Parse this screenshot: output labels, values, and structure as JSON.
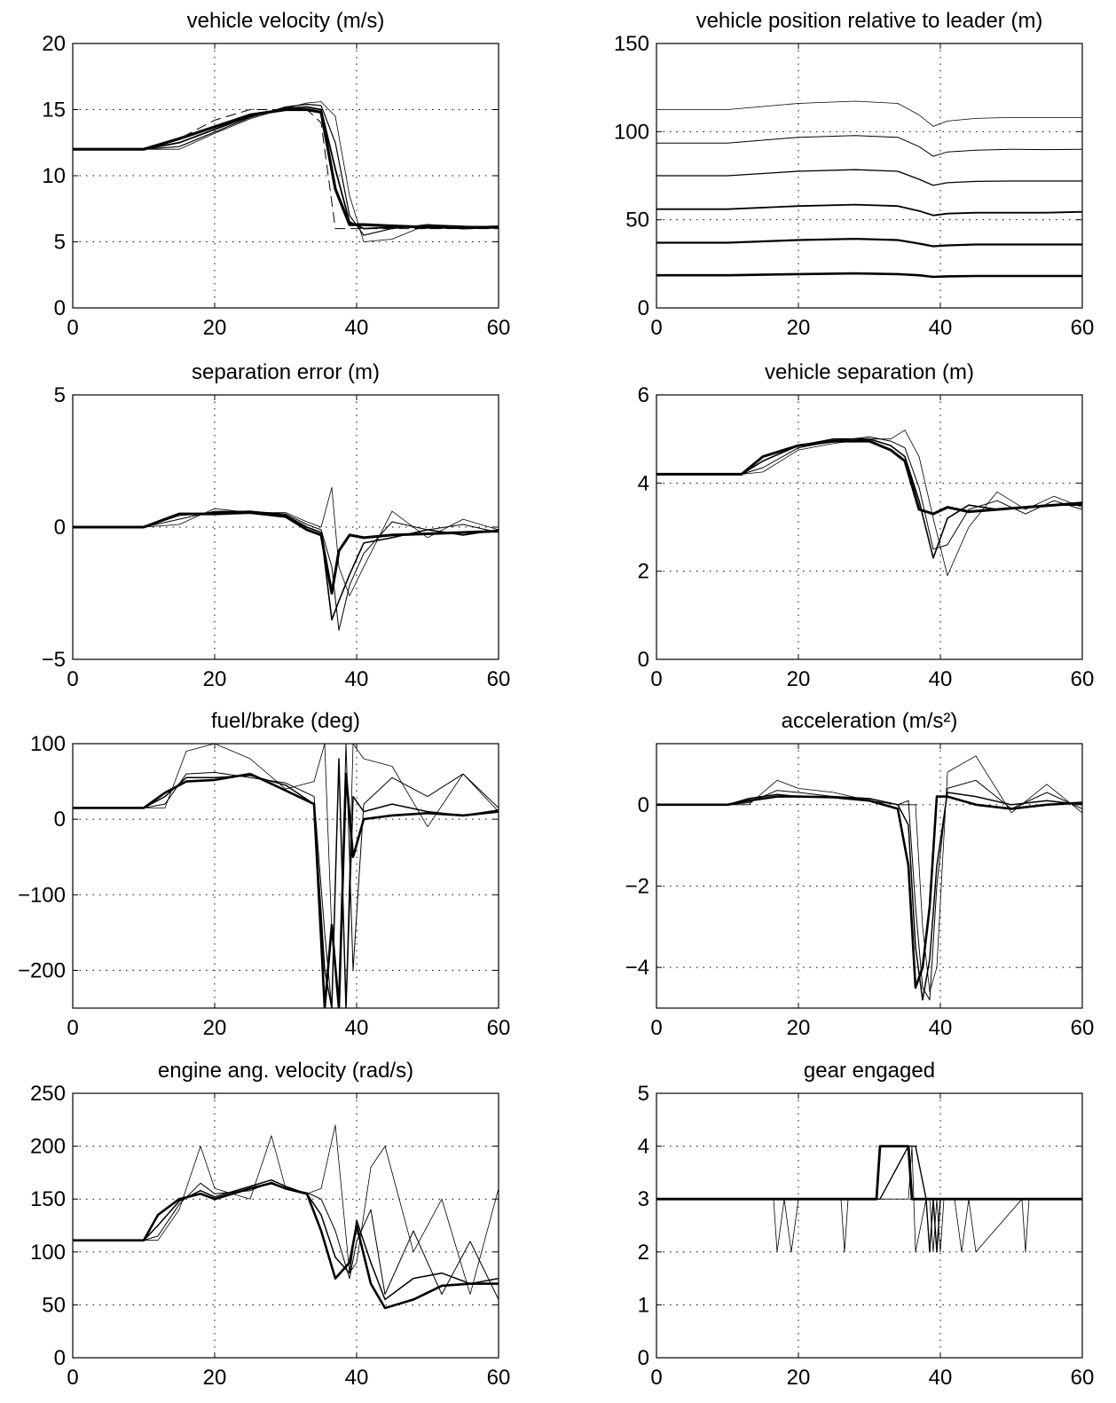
{
  "figure": {
    "background": "#ffffff",
    "line_color": "#000000",
    "grid_style": "dotted",
    "grid": true
  },
  "chart_data": [
    {
      "id": "velocity",
      "type": "line",
      "title": "vehicle velocity (m/s)",
      "xlim": [
        0,
        60
      ],
      "ylim": [
        0,
        20
      ],
      "xticks": [
        0,
        20,
        40,
        60
      ],
      "yticks": [
        0,
        5,
        10,
        15,
        20
      ],
      "ytick_labels": [
        "0",
        "5",
        "10",
        "15",
        "20"
      ],
      "x": [
        0,
        10,
        15,
        20,
        25,
        30,
        33,
        35,
        37,
        39,
        41,
        45,
        50,
        55,
        60
      ],
      "series": [
        {
          "values": [
            12,
            12,
            12.8,
            13.7,
            14.6,
            15.0,
            15.0,
            14.8,
            9.0,
            6.3,
            6.3,
            6.2,
            6.1,
            6.1,
            6.1
          ],
          "width": 3.2
        },
        {
          "values": [
            12,
            12,
            12.5,
            13.5,
            14.5,
            15.1,
            15.2,
            15.0,
            10.5,
            6.5,
            6.0,
            6.1,
            6.2,
            6.0,
            6.1
          ],
          "width": 1.8
        },
        {
          "values": [
            12,
            12,
            12.2,
            13.3,
            14.4,
            15.2,
            15.4,
            15.3,
            12.5,
            7.0,
            5.5,
            6.0,
            6.3,
            6.1,
            6.2
          ],
          "width": 1.2
        },
        {
          "values": [
            12,
            12,
            12.0,
            13.2,
            14.3,
            15.1,
            15.5,
            15.6,
            14.5,
            8.5,
            5.0,
            5.2,
            6.3,
            6.2,
            6.1
          ],
          "width": 0.8
        },
        {
          "values": [
            12,
            12,
            12.8,
            14.2,
            15.0,
            15.0,
            15.0,
            14.0,
            6.0,
            6.0,
            6.0,
            6.0,
            6.0,
            6.0,
            6.0
          ],
          "width": 1.0,
          "dash": "12,6"
        }
      ]
    },
    {
      "id": "position",
      "type": "line",
      "title": "vehicle position relative to leader (m)",
      "xlim": [
        0,
        60
      ],
      "ylim": [
        0,
        150
      ],
      "xticks": [
        0,
        20,
        40,
        60
      ],
      "yticks": [
        0,
        50,
        100,
        150
      ],
      "ytick_labels": [
        "0",
        "50",
        "100",
        "150"
      ],
      "x": [
        0,
        10,
        20,
        28,
        34,
        37,
        39,
        41,
        45,
        50,
        55,
        60
      ],
      "series": [
        {
          "values": [
            18.5,
            18.5,
            19.2,
            19.6,
            19.2,
            18.5,
            17.6,
            17.9,
            18.1,
            18.1,
            18.1,
            18.1
          ],
          "width": 2.6
        },
        {
          "values": [
            37,
            37,
            38.5,
            39.2,
            38.5,
            36.5,
            35,
            35.5,
            36,
            36,
            36,
            36
          ],
          "width": 2.2
        },
        {
          "values": [
            56,
            56,
            57.8,
            58.6,
            57.8,
            55,
            52.5,
            53.5,
            54,
            54,
            54,
            54.5
          ],
          "width": 1.8
        },
        {
          "values": [
            75,
            75,
            77.5,
            78.4,
            77.5,
            73,
            69.5,
            71,
            71.8,
            72,
            72,
            72
          ],
          "width": 1.3
        },
        {
          "values": [
            93.5,
            93.5,
            96.8,
            97.8,
            96.8,
            91.5,
            86,
            88.5,
            89.5,
            90,
            89.8,
            90
          ],
          "width": 1.0
        },
        {
          "values": [
            112.5,
            112.5,
            116,
            117.3,
            116,
            109.5,
            103,
            106,
            107.5,
            108,
            108,
            108
          ],
          "width": 0.8
        }
      ]
    },
    {
      "id": "sep_error",
      "type": "line",
      "title": "separation error (m)",
      "xlim": [
        0,
        60
      ],
      "ylim": [
        -5,
        5
      ],
      "xticks": [
        0,
        20,
        40,
        60
      ],
      "yticks": [
        -5,
        0,
        5
      ],
      "ytick_labels": [
        "−5",
        "0",
        "5"
      ],
      "x": [
        0,
        10,
        15,
        20,
        25,
        30,
        33,
        35,
        36.5,
        37.5,
        39,
        41,
        45,
        50,
        55,
        60
      ],
      "series": [
        {
          "values": [
            0,
            0,
            0.5,
            0.5,
            0.55,
            0.4,
            -0.1,
            -0.3,
            -2.5,
            -0.9,
            -0.3,
            -0.4,
            -0.3,
            -0.25,
            -0.2,
            -0.15
          ],
          "width": 3.0
        },
        {
          "values": [
            0,
            0,
            0.45,
            0.55,
            0.6,
            0.45,
            0.0,
            -0.2,
            -3.5,
            -2.8,
            -1.8,
            -0.6,
            -0.4,
            -0.1,
            -0.3,
            -0.1
          ],
          "width": 1.6
        },
        {
          "values": [
            0,
            0,
            0.3,
            0.6,
            0.6,
            0.5,
            0.1,
            -0.1,
            -1.5,
            -3.9,
            -2.2,
            -1.0,
            0.2,
            -0.1,
            0.1,
            -0.2
          ],
          "width": 1.0
        },
        {
          "values": [
            0,
            0,
            0.1,
            0.7,
            0.55,
            0.55,
            0.2,
            0.0,
            1.5,
            -1.5,
            -2.6,
            -1.5,
            0.6,
            -0.4,
            0.3,
            -0.1
          ],
          "width": 0.8
        }
      ]
    },
    {
      "id": "separation",
      "type": "line",
      "title": "vehicle separation (m)",
      "xlim": [
        0,
        60
      ],
      "ylim": [
        0,
        6
      ],
      "xticks": [
        0,
        20,
        40,
        60
      ],
      "yticks": [
        0,
        2,
        4,
        6
      ],
      "ytick_labels": [
        "0",
        "2",
        "4",
        "6"
      ],
      "x": [
        0,
        10,
        12,
        15,
        20,
        25,
        30,
        33,
        35,
        37,
        39,
        41,
        44,
        48,
        52,
        56,
        60
      ],
      "series": [
        {
          "values": [
            4.2,
            4.2,
            4.2,
            4.6,
            4.85,
            4.95,
            4.95,
            4.75,
            4.5,
            3.4,
            3.3,
            3.45,
            3.35,
            3.4,
            3.45,
            3.5,
            3.55
          ],
          "width": 3.0
        },
        {
          "values": [
            4.2,
            4.2,
            4.2,
            4.5,
            4.85,
            5.0,
            5.0,
            4.85,
            4.6,
            3.6,
            2.3,
            3.2,
            3.5,
            3.4,
            3.45,
            3.5,
            3.5
          ],
          "width": 1.6
        },
        {
          "values": [
            4.2,
            4.2,
            4.2,
            4.35,
            4.8,
            4.95,
            5.05,
            4.95,
            4.8,
            3.9,
            2.5,
            2.6,
            3.4,
            3.6,
            3.3,
            3.6,
            3.4
          ],
          "width": 1.0
        },
        {
          "values": [
            4.2,
            4.2,
            4.2,
            4.25,
            4.75,
            4.9,
            5.0,
            5.0,
            5.2,
            4.6,
            3.2,
            1.9,
            3.0,
            3.8,
            3.4,
            3.7,
            3.45
          ],
          "width": 0.8
        }
      ]
    },
    {
      "id": "fuel_brake",
      "type": "line",
      "title": "fuel/brake (deg)",
      "xlim": [
        0,
        60
      ],
      "ylim": [
        -250,
        100
      ],
      "xticks": [
        0,
        20,
        40,
        60
      ],
      "yticks": [
        -200,
        -100,
        0,
        100
      ],
      "ytick_labels": [
        "−200",
        "−100",
        "0",
        "100"
      ],
      "x": [
        0,
        10,
        13,
        16,
        20,
        25,
        30,
        34,
        35.5,
        36.5,
        37.5,
        38.5,
        39.5,
        41,
        45,
        50,
        55,
        60
      ],
      "series": [
        {
          "values": [
            15,
            15,
            35,
            50,
            52,
            60,
            38,
            20,
            -250,
            -140,
            -250,
            60,
            -50,
            0,
            5,
            8,
            5,
            10
          ],
          "width": 2.6
        },
        {
          "values": [
            15,
            15,
            30,
            55,
            55,
            58,
            45,
            20,
            -200,
            -250,
            80,
            -250,
            30,
            10,
            20,
            10,
            5,
            12
          ],
          "width": 1.5
        },
        {
          "values": [
            15,
            15,
            20,
            60,
            62,
            55,
            48,
            30,
            -150,
            -250,
            -250,
            100,
            -200,
            20,
            55,
            30,
            60,
            15
          ],
          "width": 1.0
        },
        {
          "values": [
            15,
            15,
            15,
            90,
            100,
            80,
            40,
            50,
            100,
            -150,
            -250,
            -250,
            100,
            80,
            70,
            -10,
            60,
            10
          ],
          "width": 0.8
        }
      ]
    },
    {
      "id": "acceleration",
      "type": "line",
      "title": "acceleration (m/s²)",
      "xlim": [
        0,
        60
      ],
      "ylim": [
        -5,
        1.5
      ],
      "xticks": [
        0,
        20,
        40,
        60
      ],
      "yticks": [
        -4,
        -2,
        0
      ],
      "ytick_labels": [
        "−4",
        "−2",
        "0"
      ],
      "x": [
        0,
        10,
        13,
        17,
        20,
        25,
        30,
        34,
        35.5,
        36.5,
        37.5,
        38.5,
        39.5,
        41,
        45,
        50,
        55,
        60
      ],
      "series": [
        {
          "values": [
            0,
            0,
            0.1,
            0.2,
            0.2,
            0.18,
            0.1,
            -0.1,
            -1.5,
            -4.5,
            -4.0,
            -2.5,
            0.2,
            0.2,
            0.0,
            -0.1,
            0.0,
            0.05
          ],
          "width": 2.6
        },
        {
          "values": [
            0,
            0,
            0.15,
            0.25,
            0.2,
            0.2,
            0.15,
            0.0,
            -0.5,
            -3.5,
            -4.8,
            -3.8,
            -1.5,
            0.3,
            0.2,
            0.0,
            0.1,
            0.0
          ],
          "width": 1.5
        },
        {
          "values": [
            0,
            0,
            0.05,
            0.35,
            0.3,
            0.2,
            0.15,
            0.0,
            0.1,
            -2.5,
            -4.5,
            -4.8,
            -2.0,
            0.4,
            0.6,
            -0.1,
            0.3,
            -0.1
          ],
          "width": 1.0
        },
        {
          "values": [
            0,
            0,
            0.0,
            0.6,
            0.4,
            0.3,
            0.1,
            0.0,
            0.0,
            0.0,
            -3.0,
            -4.6,
            -4.0,
            0.8,
            1.2,
            -0.2,
            0.5,
            -0.2
          ],
          "width": 0.8
        }
      ]
    },
    {
      "id": "engine",
      "type": "line",
      "title": "engine ang. velocity (rad/s)",
      "xlim": [
        0,
        60
      ],
      "ylim": [
        0,
        250
      ],
      "xticks": [
        0,
        20,
        40,
        60
      ],
      "yticks": [
        0,
        50,
        100,
        150,
        200,
        250
      ],
      "ytick_labels": [
        "0",
        "50",
        "100",
        "150",
        "200",
        "250"
      ],
      "x": [
        0,
        10,
        12,
        15,
        18,
        20,
        25,
        28,
        30,
        33,
        35,
        37,
        39,
        40,
        42,
        44,
        48,
        52,
        56,
        60
      ],
      "series": [
        {
          "values": [
            111,
            111,
            135,
            150,
            155,
            150,
            160,
            165,
            160,
            155,
            120,
            75,
            90,
            125,
            70,
            47,
            55,
            68,
            70,
            70
          ],
          "width": 2.6
        },
        {
          "values": [
            111,
            111,
            125,
            148,
            158,
            152,
            162,
            168,
            162,
            155,
            135,
            95,
            80,
            130,
            90,
            55,
            75,
            80,
            70,
            75
          ],
          "width": 1.5
        },
        {
          "values": [
            111,
            111,
            115,
            145,
            165,
            155,
            158,
            166,
            160,
            156,
            150,
            120,
            75,
            110,
            140,
            60,
            120,
            60,
            110,
            55
          ],
          "width": 1.0
        },
        {
          "values": [
            111,
            111,
            111,
            140,
            200,
            160,
            150,
            210,
            160,
            155,
            160,
            220,
            80,
            90,
            180,
            200,
            100,
            150,
            60,
            160
          ],
          "width": 0.8
        }
      ]
    },
    {
      "id": "gear",
      "type": "line",
      "title": "gear engaged",
      "xlim": [
        0,
        60
      ],
      "ylim": [
        0,
        5
      ],
      "xticks": [
        0,
        20,
        40,
        60
      ],
      "yticks": [
        0,
        1,
        2,
        3,
        4,
        5
      ],
      "ytick_labels": [
        "0",
        "1",
        "2",
        "3",
        "4",
        "5"
      ],
      "x": [
        0,
        16.5,
        17,
        18,
        19,
        20,
        20.5,
        26,
        26.5,
        27,
        31,
        31.5,
        35.5,
        36,
        36.5,
        38,
        38.5,
        39,
        39.5,
        40,
        40.5,
        42,
        43,
        44,
        45,
        51.5,
        52,
        52.5,
        60
      ],
      "series": [
        {
          "values": [
            3,
            3,
            3,
            3,
            3,
            3,
            3,
            3,
            3,
            3,
            3,
            4,
            4,
            3,
            3,
            3,
            3,
            3,
            3,
            3,
            3,
            3,
            3,
            3,
            3,
            3,
            3,
            3,
            3
          ],
          "width": 2.8
        },
        {
          "values": [
            3,
            3,
            3,
            3,
            3,
            3,
            3,
            3,
            3,
            3,
            3,
            3,
            4,
            4,
            4,
            3,
            2,
            3,
            2,
            3,
            3,
            3,
            3,
            3,
            3,
            3,
            3,
            3,
            3
          ],
          "width": 1.4
        },
        {
          "values": [
            3,
            3,
            2,
            3,
            2,
            3,
            3,
            3,
            2,
            3,
            3,
            3,
            3,
            4,
            2,
            3,
            3,
            2,
            3,
            2,
            3,
            3,
            2,
            3,
            2,
            3,
            2,
            3,
            3
          ],
          "width": 0.8
        }
      ]
    }
  ]
}
